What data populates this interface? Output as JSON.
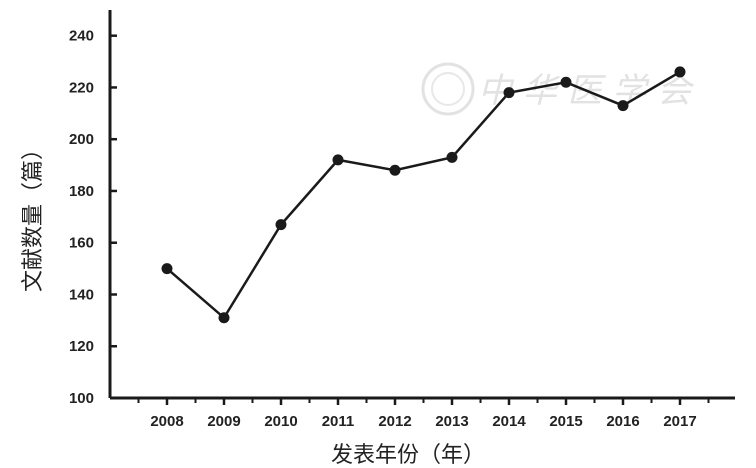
{
  "chart_data": {
    "type": "line",
    "title": "",
    "xlabel": "发表年份（年）",
    "ylabel": "文献数量（篇）",
    "categories": [
      "2008",
      "2009",
      "2010",
      "2011",
      "2012",
      "2013",
      "2014",
      "2015",
      "2016",
      "2017"
    ],
    "values": [
      150,
      131,
      167,
      192,
      188,
      193,
      218,
      222,
      213,
      226
    ],
    "ylim": [
      100,
      240
    ],
    "yticks": [
      100,
      120,
      140,
      160,
      180,
      200,
      220,
      240
    ],
    "grid": false,
    "legend": "none",
    "colors": {
      "line": "#1a1a1a",
      "marker": "#1a1a1a"
    }
  },
  "watermark": "中华医学会"
}
